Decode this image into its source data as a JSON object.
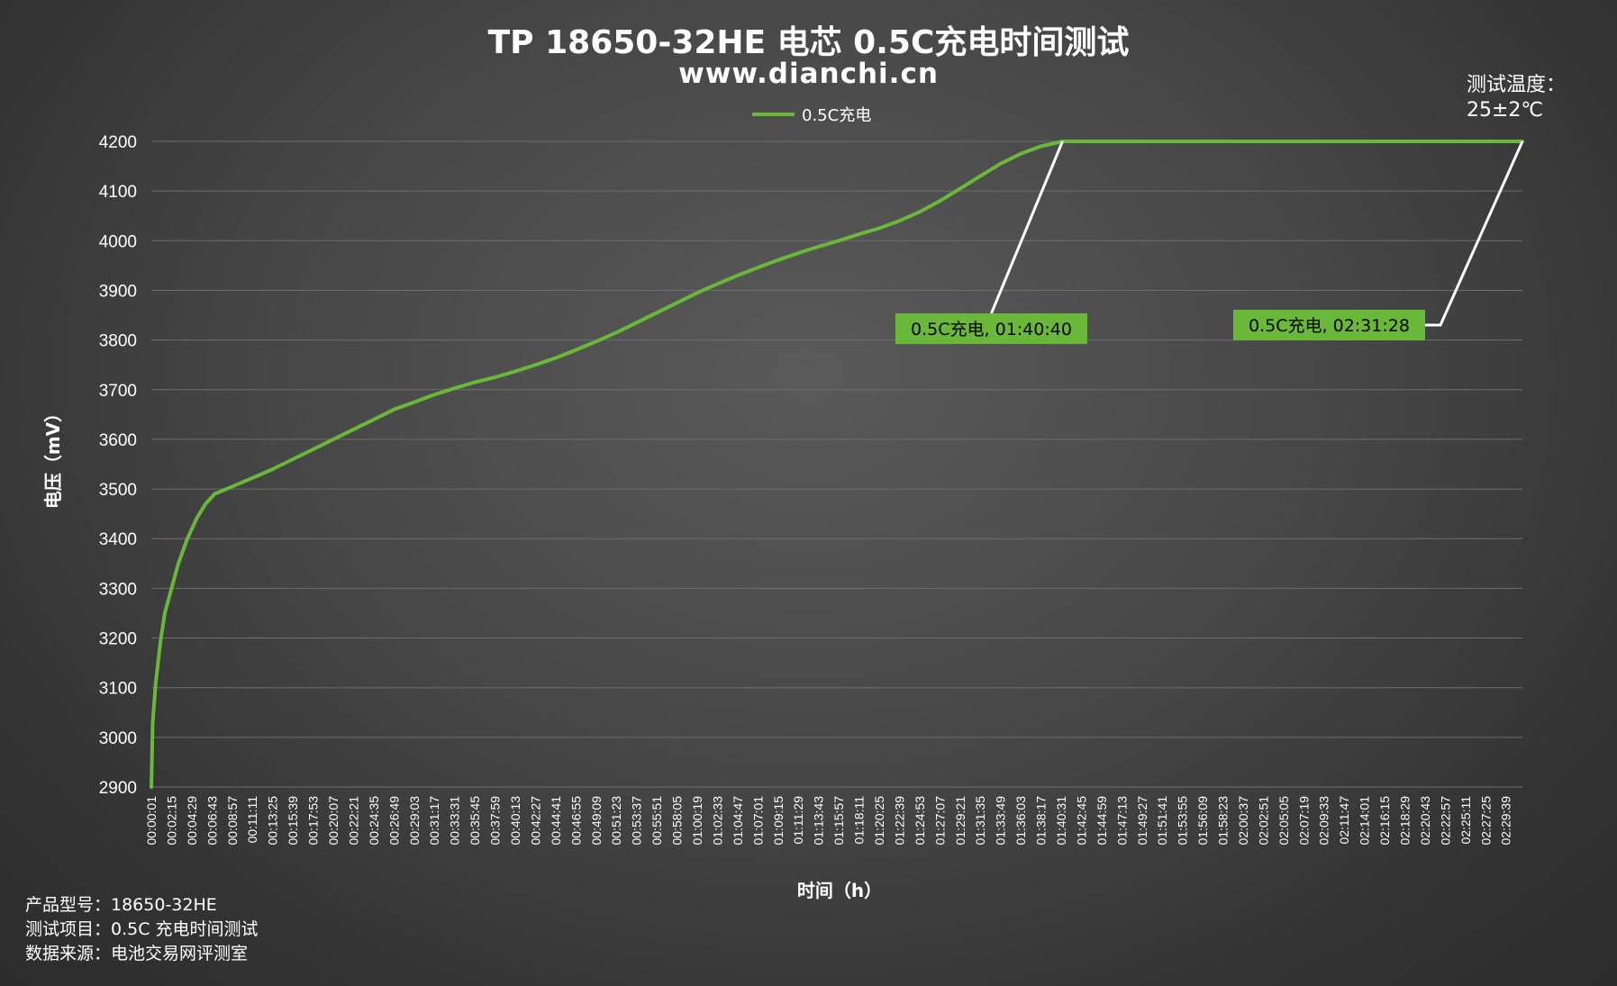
{
  "header": {
    "title": "TP 18650-32HE 电芯 0.5C充电时间测试",
    "subtitle": "www.dianchi.cn"
  },
  "temperature": {
    "label": "测试温度：",
    "value": "25±2℃"
  },
  "footer": {
    "lines": [
      "产品型号：18650-32HE",
      "测试项目：0.5C 充电时间测试",
      "数据来源：电池交易网评测室"
    ]
  },
  "colors": {
    "series": "#6ab83a",
    "callout_bg": "#6ab83a",
    "callout_text": "#000000",
    "leader": "#ffffff",
    "grid": "#6e6e6e",
    "text": "#ffffff"
  },
  "chart_data": {
    "type": "line",
    "title": "TP 18650-32HE 电芯 0.5C充电时间测试",
    "xlabel": "时间（h）",
    "ylabel": "电压（mV）",
    "ylim": [
      2900,
      4200
    ],
    "yticks": [
      2900,
      3000,
      3100,
      3200,
      3300,
      3400,
      3500,
      3600,
      3700,
      3800,
      3900,
      4000,
      4100,
      4200
    ],
    "grid": true,
    "legend_position": "top",
    "x_tick_labels": [
      "00:00:01",
      "00:02:15",
      "00:04:29",
      "00:06:43",
      "00:08:57",
      "00:11:11",
      "00:13:25",
      "00:15:39",
      "00:17:53",
      "00:20:07",
      "00:22:21",
      "00:24:35",
      "00:26:49",
      "00:29:03",
      "00:31:17",
      "00:33:31",
      "00:35:45",
      "00:37:59",
      "00:40:13",
      "00:42:27",
      "00:44:41",
      "00:46:55",
      "00:49:09",
      "00:51:23",
      "00:53:37",
      "00:55:51",
      "00:58:05",
      "01:00:19",
      "01:02:33",
      "01:04:47",
      "01:07:01",
      "01:09:15",
      "01:11:29",
      "01:13:43",
      "01:15:57",
      "01:18:11",
      "01:20:25",
      "01:22:39",
      "01:24:53",
      "01:27:07",
      "01:29:21",
      "01:31:35",
      "01:33:49",
      "01:36:03",
      "01:38:17",
      "01:40:31",
      "01:42:45",
      "01:44:59",
      "01:47:13",
      "01:49:27",
      "01:51:41",
      "01:53:55",
      "01:56:09",
      "01:58:23",
      "02:00:37",
      "02:02:51",
      "02:05:05",
      "02:07:19",
      "02:09:33",
      "02:11:47",
      "02:14:01",
      "02:16:15",
      "02:18:29",
      "02:20:43",
      "02:22:57",
      "02:25:11",
      "02:27:25",
      "02:29:39"
    ],
    "x_range": [
      "00:00:01",
      "02:31:28"
    ],
    "series": [
      {
        "name": "0.5C充电",
        "points": [
          [
            "00:00:01",
            2900
          ],
          [
            "00:00:10",
            3030
          ],
          [
            "00:00:30",
            3110
          ],
          [
            "00:01:00",
            3190
          ],
          [
            "00:01:30",
            3250
          ],
          [
            "00:02:15",
            3300
          ],
          [
            "00:03:00",
            3350
          ],
          [
            "00:04:00",
            3400
          ],
          [
            "00:05:00",
            3440
          ],
          [
            "00:06:00",
            3470
          ],
          [
            "00:07:00",
            3490
          ],
          [
            "00:08:57",
            3505
          ],
          [
            "00:11:11",
            3522
          ],
          [
            "00:13:25",
            3540
          ],
          [
            "00:15:39",
            3560
          ],
          [
            "00:17:53",
            3580
          ],
          [
            "00:20:07",
            3600
          ],
          [
            "00:22:21",
            3620
          ],
          [
            "00:24:35",
            3640
          ],
          [
            "00:26:49",
            3660
          ],
          [
            "00:29:03",
            3675
          ],
          [
            "00:31:17",
            3690
          ],
          [
            "00:33:31",
            3703
          ],
          [
            "00:35:45",
            3715
          ],
          [
            "00:37:59",
            3725
          ],
          [
            "00:40:13",
            3737
          ],
          [
            "00:42:27",
            3750
          ],
          [
            "00:44:41",
            3764
          ],
          [
            "00:46:55",
            3780
          ],
          [
            "00:49:09",
            3797
          ],
          [
            "00:51:23",
            3815
          ],
          [
            "00:53:37",
            3835
          ],
          [
            "00:55:51",
            3855
          ],
          [
            "00:58:05",
            3875
          ],
          [
            "01:00:19",
            3895
          ],
          [
            "01:02:33",
            3913
          ],
          [
            "01:04:47",
            3930
          ],
          [
            "01:07:01",
            3946
          ],
          [
            "01:09:15",
            3961
          ],
          [
            "01:11:29",
            3975
          ],
          [
            "01:13:43",
            3988
          ],
          [
            "01:15:57",
            4000
          ],
          [
            "01:18:11",
            4013
          ],
          [
            "01:20:25",
            4025
          ],
          [
            "01:22:39",
            4040
          ],
          [
            "01:24:53",
            4058
          ],
          [
            "01:27:07",
            4080
          ],
          [
            "01:29:21",
            4105
          ],
          [
            "01:31:35",
            4130
          ],
          [
            "01:33:49",
            4155
          ],
          [
            "01:36:03",
            4175
          ],
          [
            "01:38:17",
            4190
          ],
          [
            "01:40:40",
            4200
          ],
          [
            "02:31:28",
            4200
          ]
        ]
      }
    ],
    "annotations": [
      {
        "label": "0.5C充电, 01:40:40",
        "time": "01:40:40",
        "value": 4200
      },
      {
        "label": "0.5C充电, 02:31:28",
        "time": "02:31:28",
        "value": 4200
      }
    ]
  }
}
